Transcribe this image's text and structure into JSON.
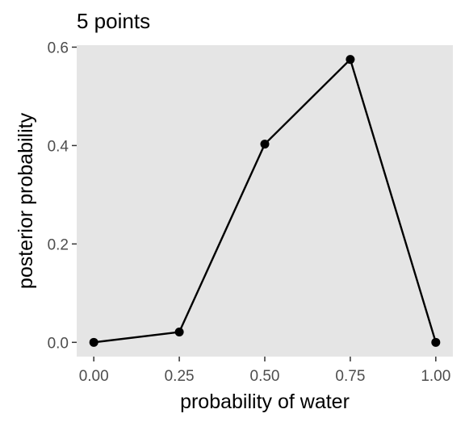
{
  "chart_data": {
    "type": "line",
    "title": "5 points",
    "xlabel": "probability of water",
    "ylabel": "posterior probability",
    "x": [
      0,
      0.25,
      0.5,
      0.75,
      1
    ],
    "y": [
      0,
      0.021,
      0.403,
      0.575,
      0
    ],
    "xlim": [
      -0.05,
      1.05
    ],
    "ylim": [
      -0.029,
      0.604
    ],
    "x_ticks": [
      0,
      0.25,
      0.5,
      0.75,
      1
    ],
    "x_tick_labels": [
      "0.00",
      "0.25",
      "0.50",
      "0.75",
      "1.00"
    ],
    "y_ticks": [
      0,
      0.2,
      0.4,
      0.6
    ],
    "y_tick_labels": [
      "0.0",
      "0.2",
      "0.4",
      "0.6"
    ],
    "grid": false,
    "legend": "none",
    "colors": {
      "panel": "#e5e5e5",
      "line": "#000000",
      "point": "#000000",
      "tick_label": "#4d4d4d",
      "tick": "#333333"
    }
  }
}
